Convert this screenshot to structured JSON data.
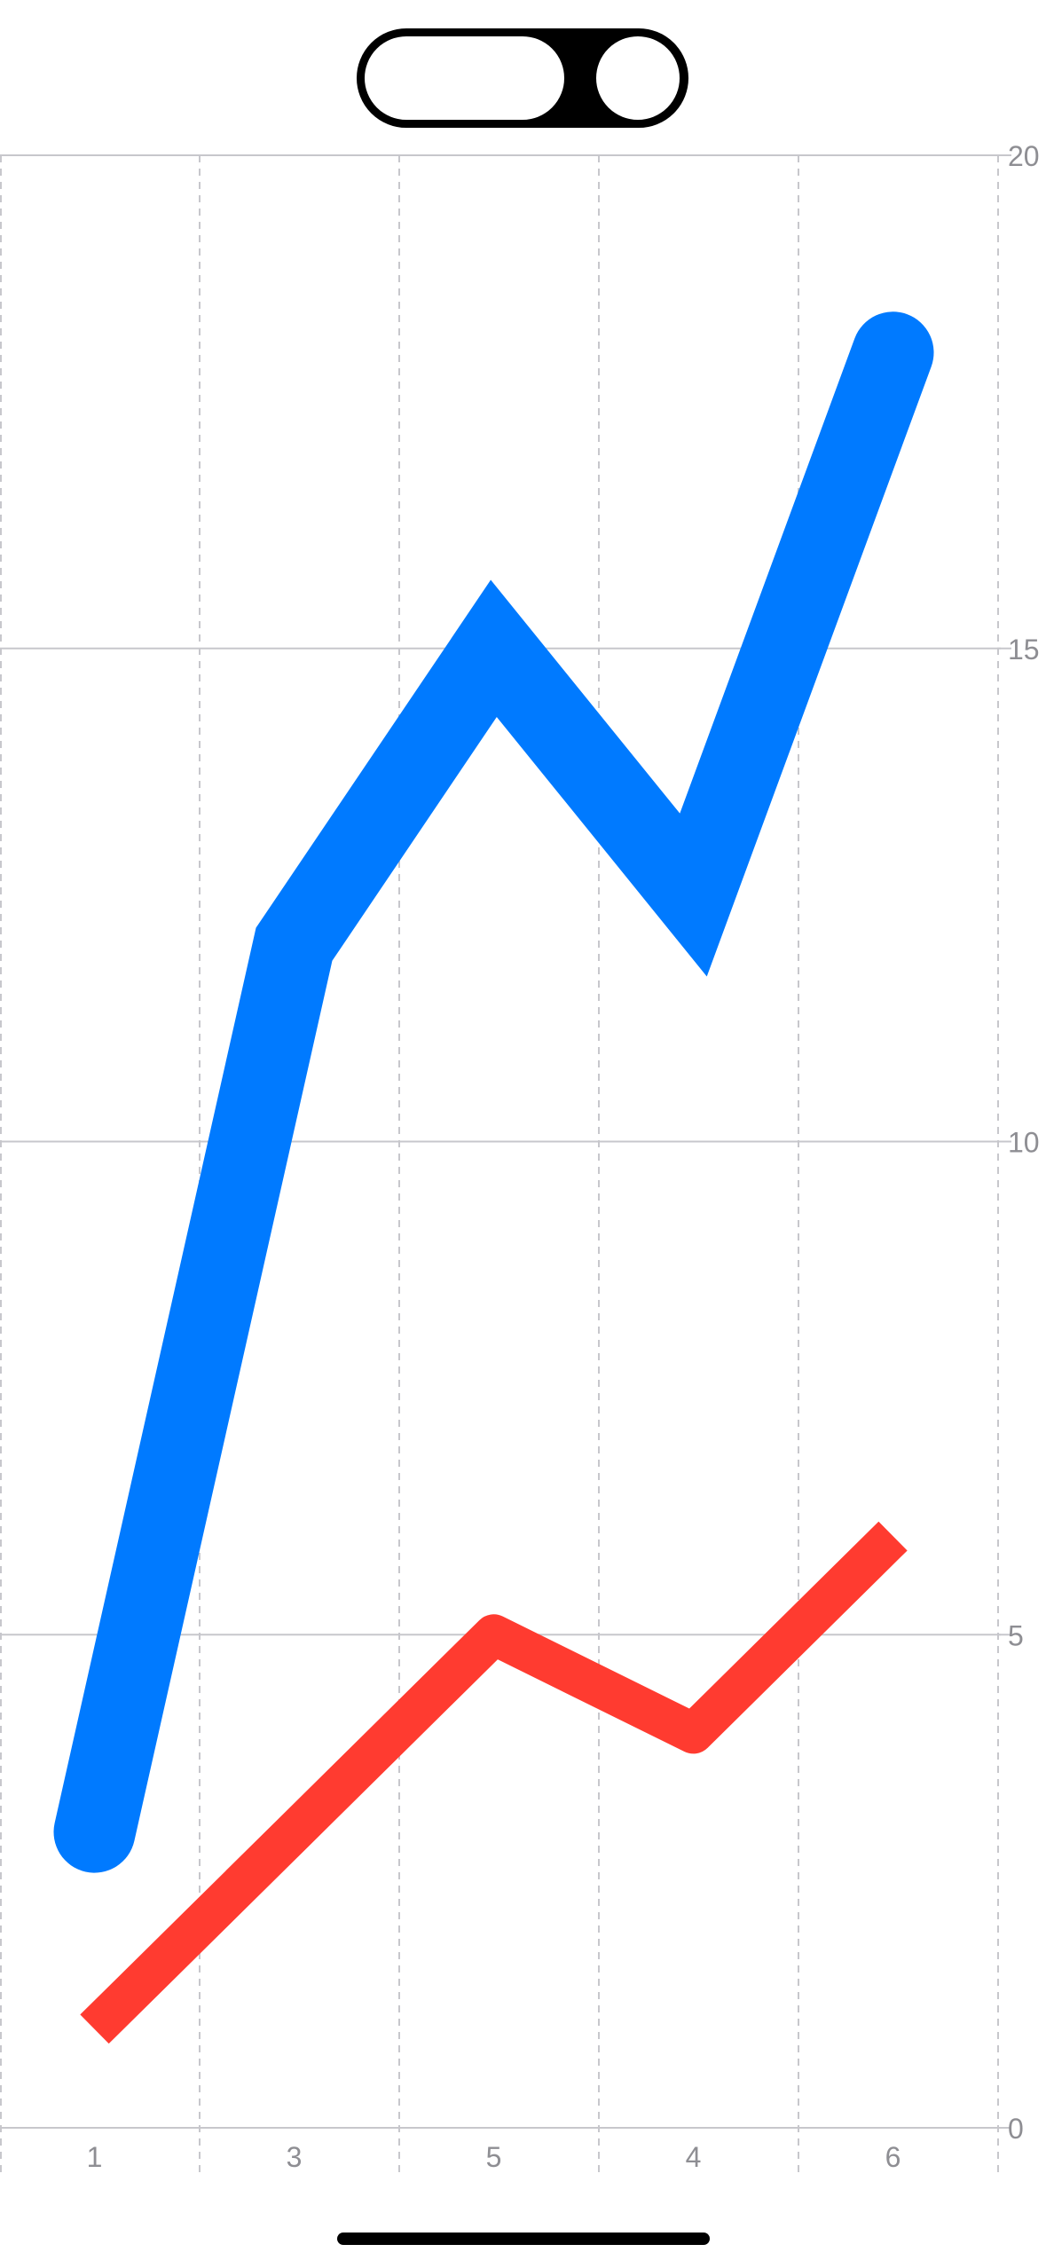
{
  "toggle": {
    "state": "on"
  },
  "chart_data": {
    "type": "line",
    "categories": [
      "1",
      "3",
      "5",
      "4",
      "6"
    ],
    "series": [
      {
        "color": "#007AFF",
        "values": [
          3,
          12,
          15,
          12.5,
          18
        ],
        "marker": "circle"
      },
      {
        "color": "#FF3B30",
        "values": [
          1,
          3,
          5,
          4,
          6
        ],
        "marker": "square"
      }
    ],
    "yticks": [
      "0",
      "5",
      "10",
      "15",
      "20"
    ],
    "ylim": [
      0,
      20
    ],
    "y_axis_position": "right",
    "grid": true
  }
}
